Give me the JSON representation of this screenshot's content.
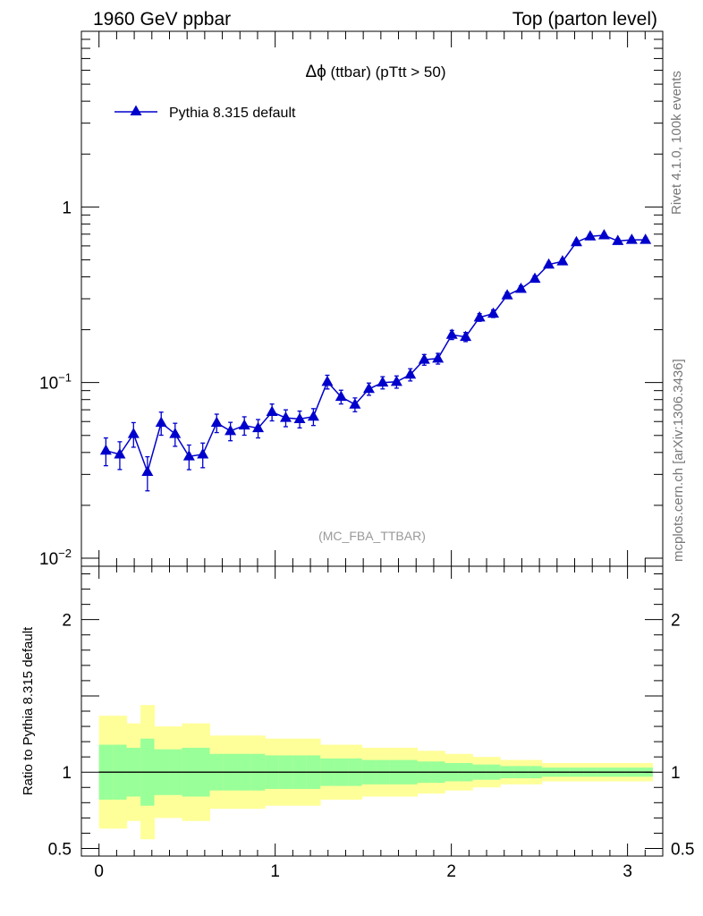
{
  "header": {
    "left_label": "1960 GeV ppbar",
    "right_label": "Top (parton level)"
  },
  "side_labels": {
    "rivet": "Rivet 4.1.0,  100k events",
    "mcplots": "mcplots.cern.ch [arXiv:1306.3436]"
  },
  "chart_data": {
    "type": "line",
    "title_symbol": "Δϕ",
    "title_rest": " (ttbar) (pTtt > 50)",
    "analysis_label": "(MC_FBA_TTBAR)",
    "legend": [
      "Pythia 8.315 default"
    ],
    "series_color": "#0000cc",
    "xlim": [
      -0.1,
      3.2
    ],
    "ylim": [
      0.009,
      10
    ],
    "ylog": true,
    "yticks_major": [
      {
        "value": 0.01,
        "base": "10",
        "exp": "−2"
      },
      {
        "value": 0.1,
        "base": "10",
        "exp": "−1"
      },
      {
        "value": 1,
        "base": "1",
        "exp": ""
      }
    ],
    "xticks": [
      {
        "value": 0,
        "label": "0"
      },
      {
        "value": 1,
        "label": "1"
      },
      {
        "value": 2,
        "label": "2"
      },
      {
        "value": 3,
        "label": "3"
      }
    ],
    "x": [
      0.039,
      0.118,
      0.196,
      0.275,
      0.353,
      0.432,
      0.511,
      0.589,
      0.668,
      0.746,
      0.825,
      0.903,
      0.982,
      1.06,
      1.139,
      1.217,
      1.296,
      1.374,
      1.453,
      1.532,
      1.61,
      1.689,
      1.767,
      1.846,
      1.924,
      2.003,
      2.081,
      2.16,
      2.238,
      2.317,
      2.395,
      2.474,
      2.553,
      2.631,
      2.71,
      2.788,
      2.867,
      2.945,
      3.024,
      3.102
    ],
    "series": [
      {
        "name": "Pythia 8.315 default",
        "values": [
          0.041,
          0.039,
          0.051,
          0.031,
          0.059,
          0.051,
          0.038,
          0.039,
          0.059,
          0.053,
          0.057,
          0.055,
          0.068,
          0.063,
          0.062,
          0.064,
          0.101,
          0.083,
          0.075,
          0.092,
          0.1,
          0.101,
          0.111,
          0.135,
          0.137,
          0.187,
          0.182,
          0.235,
          0.247,
          0.314,
          0.342,
          0.39,
          0.47,
          0.49,
          0.63,
          0.68,
          0.69,
          0.64,
          0.65,
          0.65
        ],
        "rel_err": [
          0.18,
          0.18,
          0.16,
          0.22,
          0.15,
          0.15,
          0.16,
          0.16,
          0.12,
          0.12,
          0.12,
          0.12,
          0.11,
          0.11,
          0.11,
          0.11,
          0.09,
          0.09,
          0.09,
          0.08,
          0.08,
          0.08,
          0.08,
          0.07,
          0.07,
          0.06,
          0.06,
          0.05,
          0.05,
          0.04,
          0.04,
          0.04,
          0.03,
          0.03,
          0.03,
          0.03,
          0.03,
          0.03,
          0.03,
          0.03
        ]
      }
    ],
    "ratio": {
      "ylabel": "Ratio to Pythia 8.315 default",
      "ylim": [
        0.45,
        2.35
      ],
      "yticks": [
        {
          "value": 0.5,
          "label": "0.5"
        },
        {
          "value": 1,
          "label": "1"
        },
        {
          "value": 2,
          "label": "2"
        }
      ],
      "reference": 1,
      "band_green": [
        0.18,
        0.18,
        0.16,
        0.22,
        0.15,
        0.15,
        0.16,
        0.16,
        0.12,
        0.12,
        0.12,
        0.12,
        0.11,
        0.11,
        0.11,
        0.11,
        0.09,
        0.09,
        0.09,
        0.08,
        0.08,
        0.08,
        0.08,
        0.07,
        0.07,
        0.06,
        0.06,
        0.05,
        0.05,
        0.04,
        0.04,
        0.04,
        0.03,
        0.03,
        0.03,
        0.03,
        0.03,
        0.03,
        0.03,
        0.03
      ],
      "band_yellow": [
        0.37,
        0.37,
        0.32,
        0.44,
        0.3,
        0.3,
        0.32,
        0.32,
        0.24,
        0.24,
        0.24,
        0.24,
        0.22,
        0.22,
        0.22,
        0.22,
        0.18,
        0.18,
        0.18,
        0.16,
        0.16,
        0.16,
        0.16,
        0.14,
        0.14,
        0.12,
        0.12,
        0.1,
        0.1,
        0.08,
        0.08,
        0.08,
        0.06,
        0.06,
        0.06,
        0.06,
        0.06,
        0.06,
        0.06,
        0.06
      ],
      "green_color": "#99ff99",
      "yellow_color": "#ffff99"
    }
  }
}
